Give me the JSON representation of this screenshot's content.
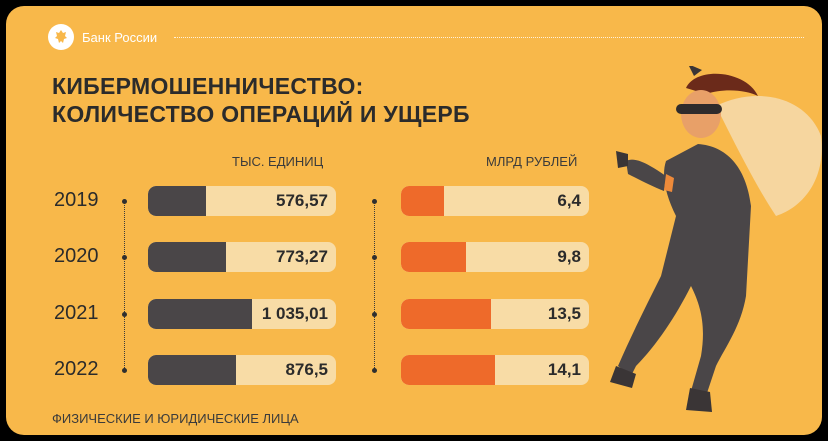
{
  "header": {
    "brand": "Банк России"
  },
  "title_line1": "КИБЕРМОШЕННИЧЕСТВО:",
  "title_line2": "КОЛИЧЕСТВО ОПЕРАЦИЙ И УЩЕРБ",
  "footer": "ФИЗИЧЕСКИЕ И ЮРИДИЧЕСКИЕ ЛИЦА",
  "colors": {
    "background": "#f8b84a",
    "dark": "#4a4648",
    "orange": "#ee6a2a",
    "track": "#f8dca6"
  },
  "chart_data": [
    {
      "type": "bar",
      "ylabel": "ТЫС. ЕДИНИЦ",
      "categories": [
        "2019",
        "2020",
        "2021",
        "2022"
      ],
      "values": [
        576.57,
        773.27,
        1035.01,
        876.5
      ],
      "labels": [
        "576,57",
        "773,27",
        "1 035,01",
        "876,5"
      ],
      "color": "#4a4648"
    },
    {
      "type": "bar",
      "ylabel": "МЛРД РУБЛЕЙ",
      "categories": [
        "2019",
        "2020",
        "2021",
        "2022"
      ],
      "values": [
        6.4,
        9.8,
        13.5,
        14.1
      ],
      "labels": [
        "6,4",
        "9,8",
        "13,5",
        "14,1"
      ],
      "color": "#ee6a2a"
    }
  ]
}
